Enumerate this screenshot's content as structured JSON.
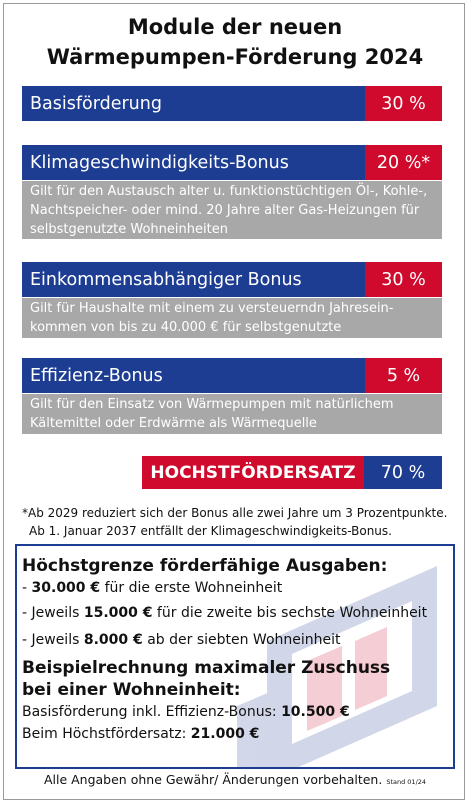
{
  "title": {
    "line1": "Module der neuen",
    "line2": "Wärmepumpen-Förderung 2024"
  },
  "modules": [
    {
      "label": "Basisförderung",
      "percent": "30 %"
    },
    {
      "label": "Klimageschwindigkeits-Bonus",
      "percent": "20 %*",
      "desc": [
        "Gilt für den Austausch alter u. funktionstüchtigen Öl-, Kohle-,",
        "Nachtspeicher- oder mind. 20 Jahre alter Gas-Heizungen für",
        "selbstgenutzte Wohneinheiten"
      ]
    },
    {
      "label": "Einkommensabhängiger Bonus",
      "percent": "30 %",
      "desc": [
        "Gilt für Haushalte mit einem zu versteuerndn Jahresein-",
        "kommen von bis zu 40.000 € für selbstgenutzte Wohneinheiten"
      ]
    },
    {
      "label": "Effizienz-Bonus",
      "percent": "5 %",
      "desc": [
        "Gilt für den Einsatz von Wärmepumpen mit natürlichem",
        "Kältemittel oder Erdwärme als Wärmequelle"
      ]
    }
  ],
  "total": {
    "label": "HOCHSTFÖRDERSATZ",
    "percent": "70 %"
  },
  "footnote": {
    "line1": "*Ab 2029 reduziert sich der Bonus alle zwei Jahre um 3 Prozentpunkte.",
    "line2": "Ab 1. Januar 2037 entfällt der Klimageschwindigkeits-Bonus."
  },
  "limits": {
    "heading": "Höchstgrenze förderfähige Ausgaben:",
    "items": [
      {
        "prefix": "- ",
        "amount": "30.000 €",
        "suffix": " für die erste Wohneinheit"
      },
      {
        "prefix": "- Jeweils ",
        "amount": "15.000 €",
        "suffix": " für die zweite bis sechste Wohneinheit"
      },
      {
        "prefix": "- Jeweils ",
        "amount": "8.000 €",
        "suffix": " ab der siebten Wohneinheit"
      }
    ]
  },
  "example": {
    "heading1": "Beispielrechnung maximaler Zuschuss",
    "heading2": "bei einer Wohneinheit:",
    "items": [
      {
        "text": "Basisförderung inkl. Effizienz-Bonus: ",
        "amount": "10.500 €"
      },
      {
        "text": "Beim Höchstfördersatz: ",
        "amount": "21.000 €"
      }
    ]
  },
  "footer": {
    "text": "Alle Angaben ohne Gewähr/ Änderungen vorbehalten.",
    "stand": "Stand 01/24"
  },
  "colors": {
    "blue": "#1d3d93",
    "red": "#cf0a2c",
    "gray": "#a8a8a8"
  }
}
